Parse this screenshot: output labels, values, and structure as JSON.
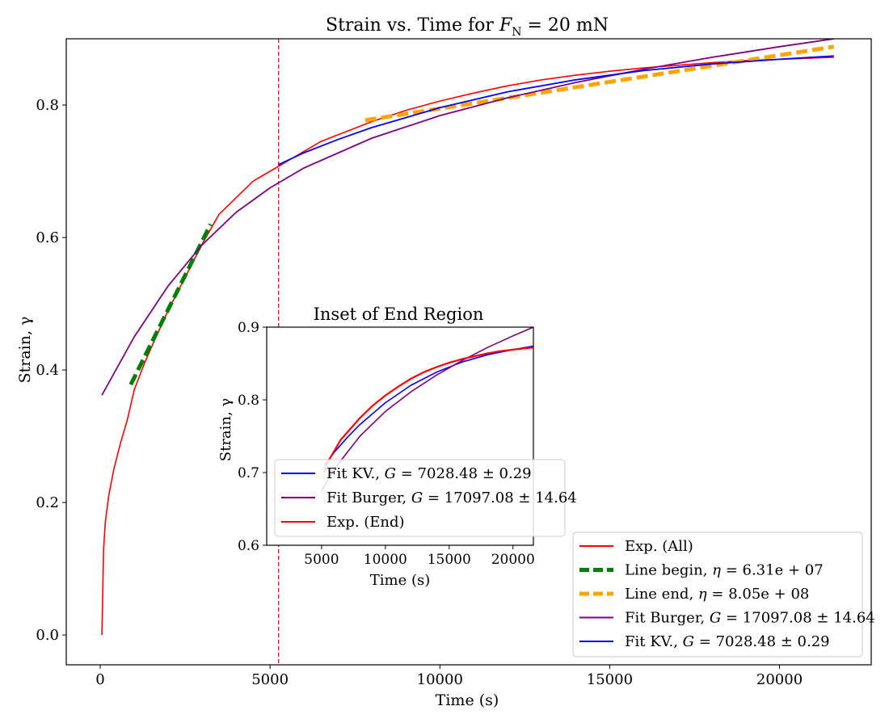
{
  "chart_data": [
    {
      "id": "main",
      "type": "line",
      "title": "Strain vs. Time for F_N = 20 mN",
      "title_parts": {
        "prefix": "Strain vs. Time for ",
        "var": "F",
        "sub": "N",
        "suffix": " = 20 mN"
      },
      "xlabel": "Time (s)",
      "ylabel": "Strain, γ",
      "xlim": [
        -1000,
        22700
      ],
      "ylim": [
        -0.045,
        0.9
      ],
      "xticks": [
        0,
        5000,
        10000,
        15000,
        20000
      ],
      "yticks": [
        0.0,
        0.2,
        0.4,
        0.6,
        0.8
      ],
      "ytick_labels": [
        "0.0",
        "0.2",
        "0.4",
        "0.6",
        "0.8"
      ],
      "grid": false,
      "legend_position": "lower-right",
      "vline": {
        "x": 5250,
        "color": "#ff0000",
        "style": "dashed"
      },
      "series": [
        {
          "name": "Exp. (All)",
          "color": "#ff0000",
          "style": "solid",
          "width": 1.6,
          "x": [
            50,
            100,
            150,
            250,
            400,
            600,
            800,
            1000,
            1300,
            1600,
            2000,
            2500,
            3000,
            3500,
            4000,
            4500,
            5000,
            5500,
            6000,
            6500,
            7000,
            7500,
            8000,
            9000,
            10000,
            11000,
            12000,
            13000,
            14000,
            15000,
            16000,
            17000,
            18000,
            19000,
            20000,
            21000,
            21600
          ],
          "y": [
            0.0,
            0.13,
            0.17,
            0.21,
            0.25,
            0.29,
            0.325,
            0.37,
            0.41,
            0.445,
            0.49,
            0.54,
            0.59,
            0.635,
            0.66,
            0.685,
            0.7,
            0.715,
            0.73,
            0.745,
            0.755,
            0.765,
            0.775,
            0.792,
            0.806,
            0.818,
            0.829,
            0.838,
            0.845,
            0.851,
            0.856,
            0.86,
            0.864,
            0.867,
            0.869,
            0.871,
            0.872
          ]
        },
        {
          "name": "Line begin, η = 6.31e+07",
          "color": "#008000",
          "style": "dashed",
          "width": 5,
          "x": [
            900,
            3250
          ],
          "y": [
            0.378,
            0.62
          ]
        },
        {
          "name": "Line end, η = 8.05e+08",
          "color": "#ffa500",
          "style": "dashed",
          "width": 5,
          "x": [
            7800,
            21600
          ],
          "y": [
            0.777,
            0.888
          ]
        },
        {
          "name": "Fit Burger, G = 17097.08 ± 14.64",
          "color": "#800080",
          "style": "solid",
          "width": 1.8,
          "x": [
            50,
            1000,
            2000,
            3000,
            4000,
            5000,
            6000,
            8000,
            10000,
            12000,
            14000,
            16000,
            18000,
            20000,
            21600
          ],
          "y": [
            0.362,
            0.45,
            0.527,
            0.589,
            0.638,
            0.675,
            0.705,
            0.75,
            0.784,
            0.811,
            0.834,
            0.854,
            0.872,
            0.888,
            0.9
          ]
        },
        {
          "name": "Fit KV., G = 7028.48 ± 0.29",
          "color": "#0000ff",
          "style": "solid",
          "width": 1.8,
          "x": [
            5250,
            6000,
            7000,
            8000,
            10000,
            12000,
            14000,
            16000,
            18000,
            20000,
            21600
          ],
          "y": [
            0.71,
            0.728,
            0.748,
            0.766,
            0.796,
            0.82,
            0.838,
            0.852,
            0.862,
            0.869,
            0.874
          ]
        }
      ]
    },
    {
      "id": "inset",
      "type": "line",
      "title": "Inset of End Region",
      "xlabel": "Time (s)",
      "ylabel": "Strain, γ",
      "xlim": [
        700,
        21600
      ],
      "ylim": [
        0.6,
        0.9
      ],
      "xticks": [
        5000,
        10000,
        15000,
        20000
      ],
      "yticks": [
        0.6,
        0.7,
        0.8,
        0.9
      ],
      "ytick_labels": [
        "0.6",
        "0.7",
        "0.8",
        "0.9"
      ],
      "grid": false,
      "legend_position": "lower-left",
      "series": [
        {
          "name": "Fit KV., G = 7028.48 ± 0.29",
          "color": "#0000ff",
          "style": "solid",
          "width": 1.6,
          "x": [
            5250,
            6000,
            7000,
            8000,
            10000,
            12000,
            14000,
            16000,
            18000,
            20000,
            21600
          ],
          "y": [
            0.71,
            0.728,
            0.748,
            0.766,
            0.796,
            0.82,
            0.838,
            0.852,
            0.862,
            0.869,
            0.874
          ]
        },
        {
          "name": "Fit Burger, G = 17097.08 ± 14.64",
          "color": "#800080",
          "style": "solid",
          "width": 1.6,
          "x": [
            5000,
            6000,
            8000,
            10000,
            12000,
            14000,
            16000,
            18000,
            20000,
            21600
          ],
          "y": [
            0.675,
            0.705,
            0.75,
            0.784,
            0.811,
            0.834,
            0.854,
            0.872,
            0.888,
            0.9
          ]
        },
        {
          "name": "Exp. (End)",
          "color": "#ff0000",
          "style": "solid",
          "width": 2.2,
          "x": [
            5200,
            5500,
            6000,
            6500,
            7000,
            7500,
            8000,
            9000,
            10000,
            11000,
            12000,
            13000,
            14000,
            15000,
            16000,
            17000,
            18000,
            19000,
            20000,
            21000,
            21600
          ],
          "y": [
            0.7,
            0.715,
            0.73,
            0.745,
            0.755,
            0.765,
            0.775,
            0.792,
            0.806,
            0.818,
            0.829,
            0.838,
            0.845,
            0.851,
            0.856,
            0.86,
            0.864,
            0.867,
            0.869,
            0.871,
            0.872
          ]
        }
      ]
    }
  ],
  "legend_main": [
    {
      "prefix": "Exp. (All)",
      "var": "",
      "suffix": "",
      "color": "#ff0000",
      "style": "solid"
    },
    {
      "prefix": "Line begin, ",
      "var": "η",
      "suffix": " = 6.31e + 07",
      "color": "#008000",
      "style": "dashed"
    },
    {
      "prefix": "Line end, ",
      "var": "η",
      "suffix": " = 8.05e + 08",
      "color": "#ffa500",
      "style": "dashed"
    },
    {
      "prefix": "Fit Burger, ",
      "var": "G",
      "suffix": " = 17097.08 ± 14.64",
      "color": "#800080",
      "style": "solid"
    },
    {
      "prefix": "Fit KV., ",
      "var": "G",
      "suffix": " = 7028.48 ± 0.29",
      "color": "#0000ff",
      "style": "solid"
    }
  ],
  "legend_inset": [
    {
      "prefix": "Fit KV., ",
      "var": "G",
      "suffix": " = 7028.48 ± 0.29",
      "color": "#0000ff",
      "style": "solid"
    },
    {
      "prefix": "Fit Burger, ",
      "var": "G",
      "suffix": " = 17097.08 ± 14.64",
      "color": "#800080",
      "style": "solid"
    },
    {
      "prefix": "Exp. (End)",
      "var": "",
      "suffix": "",
      "color": "#ff0000",
      "style": "solid"
    }
  ]
}
